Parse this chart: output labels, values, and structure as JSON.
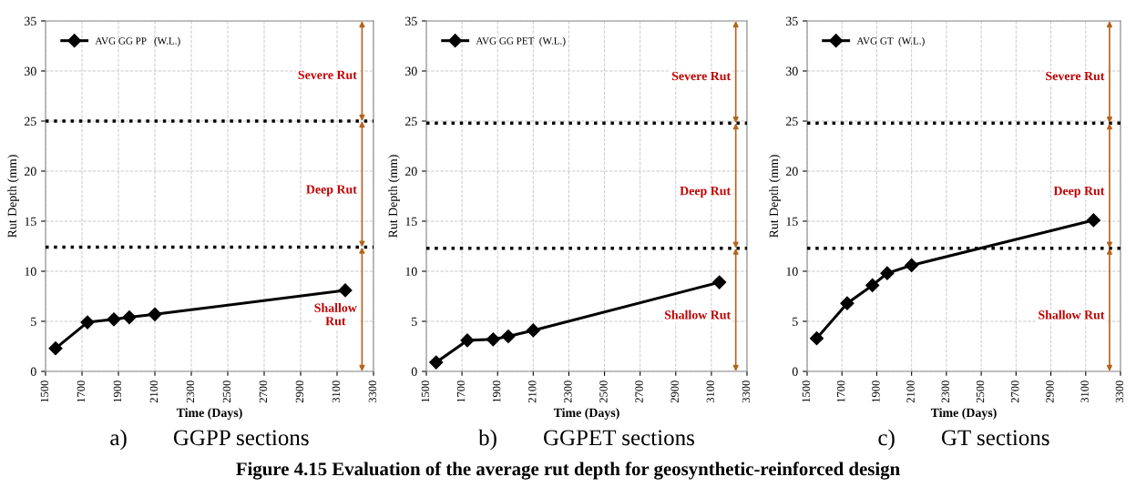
{
  "chart_data": [
    {
      "type": "line",
      "xlabel": "Time (Days)",
      "ylabel": "Rut Depth (mm)",
      "x": [
        1555,
        1730,
        1875,
        1960,
        2100,
        3145
      ],
      "series": [
        {
          "name": "AVG GG PP   (W.L.)",
          "color": "#000000",
          "values": [
            2.3,
            4.9,
            5.2,
            5.4,
            5.7,
            8.1
          ]
        }
      ],
      "xlim": [
        1500,
        3300
      ],
      "xticks": [
        1500,
        1700,
        1900,
        2100,
        2300,
        2500,
        2700,
        2900,
        3100,
        3300
      ],
      "ylim": [
        0,
        35
      ],
      "yticks": [
        0,
        5,
        10,
        15,
        20,
        25,
        30,
        35
      ],
      "grid": true,
      "legend": "top left",
      "marker": "diamond",
      "line_style": "solid",
      "ref_lines": [
        {
          "axis": "y",
          "value": 25,
          "color": "#000000",
          "line_style": "dotted"
        },
        {
          "axis": "y",
          "value": 12.4,
          "color": "#000000",
          "line_style": "dotted"
        }
      ],
      "annotations": [
        "Severe Rut",
        "Deep Rut",
        "Shallow\nRut",
        "a)        GGPP sections"
      ]
    },
    {
      "type": "line",
      "xlabel": "Time (Days)",
      "ylabel": "Rut Depth (mm)",
      "x": [
        1555,
        1730,
        1875,
        1960,
        2100,
        3145
      ],
      "series": [
        {
          "name": "AVG GG PET  (W.L.)",
          "color": "#000000",
          "values": [
            0.9,
            3.1,
            3.2,
            3.5,
            4.1,
            8.9
          ]
        }
      ],
      "xlim": [
        1500,
        3300
      ],
      "xticks": [
        1500,
        1700,
        1900,
        2100,
        2300,
        2500,
        2700,
        2900,
        3100,
        3300
      ],
      "ylim": [
        0,
        35
      ],
      "yticks": [
        0,
        5,
        10,
        15,
        20,
        25,
        30,
        35
      ],
      "grid": true,
      "legend": "top left",
      "marker": "diamond",
      "line_style": "solid",
      "ref_lines": [
        {
          "axis": "y",
          "value": 24.8,
          "color": "#000000",
          "line_style": "dotted"
        },
        {
          "axis": "y",
          "value": 12.3,
          "color": "#000000",
          "line_style": "dotted"
        }
      ],
      "annotations": [
        "Severe Rut",
        "Deep Rut",
        "Shallow Rut",
        "b)        GGPET sections",
        "Figure 4.15 Evaluation of the average rut depth for geosynthetic-reinforced design"
      ]
    },
    {
      "type": "line",
      "xlabel": "Time (Days)",
      "ylabel": "Rut Depth (mm)",
      "x": [
        1555,
        1730,
        1875,
        1960,
        2100,
        3145
      ],
      "series": [
        {
          "name": "AVG GT  (W.L.)",
          "color": "#000000",
          "values": [
            3.3,
            6.8,
            8.6,
            9.8,
            10.6,
            15.1
          ]
        }
      ],
      "xlim": [
        1500,
        3300
      ],
      "xticks": [
        1500,
        1700,
        1900,
        2100,
        2300,
        2500,
        2700,
        2900,
        3100,
        3300
      ],
      "ylim": [
        0,
        35
      ],
      "yticks": [
        0,
        5,
        10,
        15,
        20,
        25,
        30,
        35
      ],
      "grid": true,
      "legend": "top left",
      "marker": "diamond",
      "line_style": "solid",
      "ref_lines": [
        {
          "axis": "y",
          "value": 24.8,
          "color": "#000000",
          "line_style": "dotted"
        },
        {
          "axis": "y",
          "value": 12.3,
          "color": "#000000",
          "line_style": "dotted"
        }
      ],
      "annotations": [
        "Severe Rut",
        "Deep Rut",
        "Shallow Rut",
        "c)        GT sections"
      ]
    }
  ]
}
